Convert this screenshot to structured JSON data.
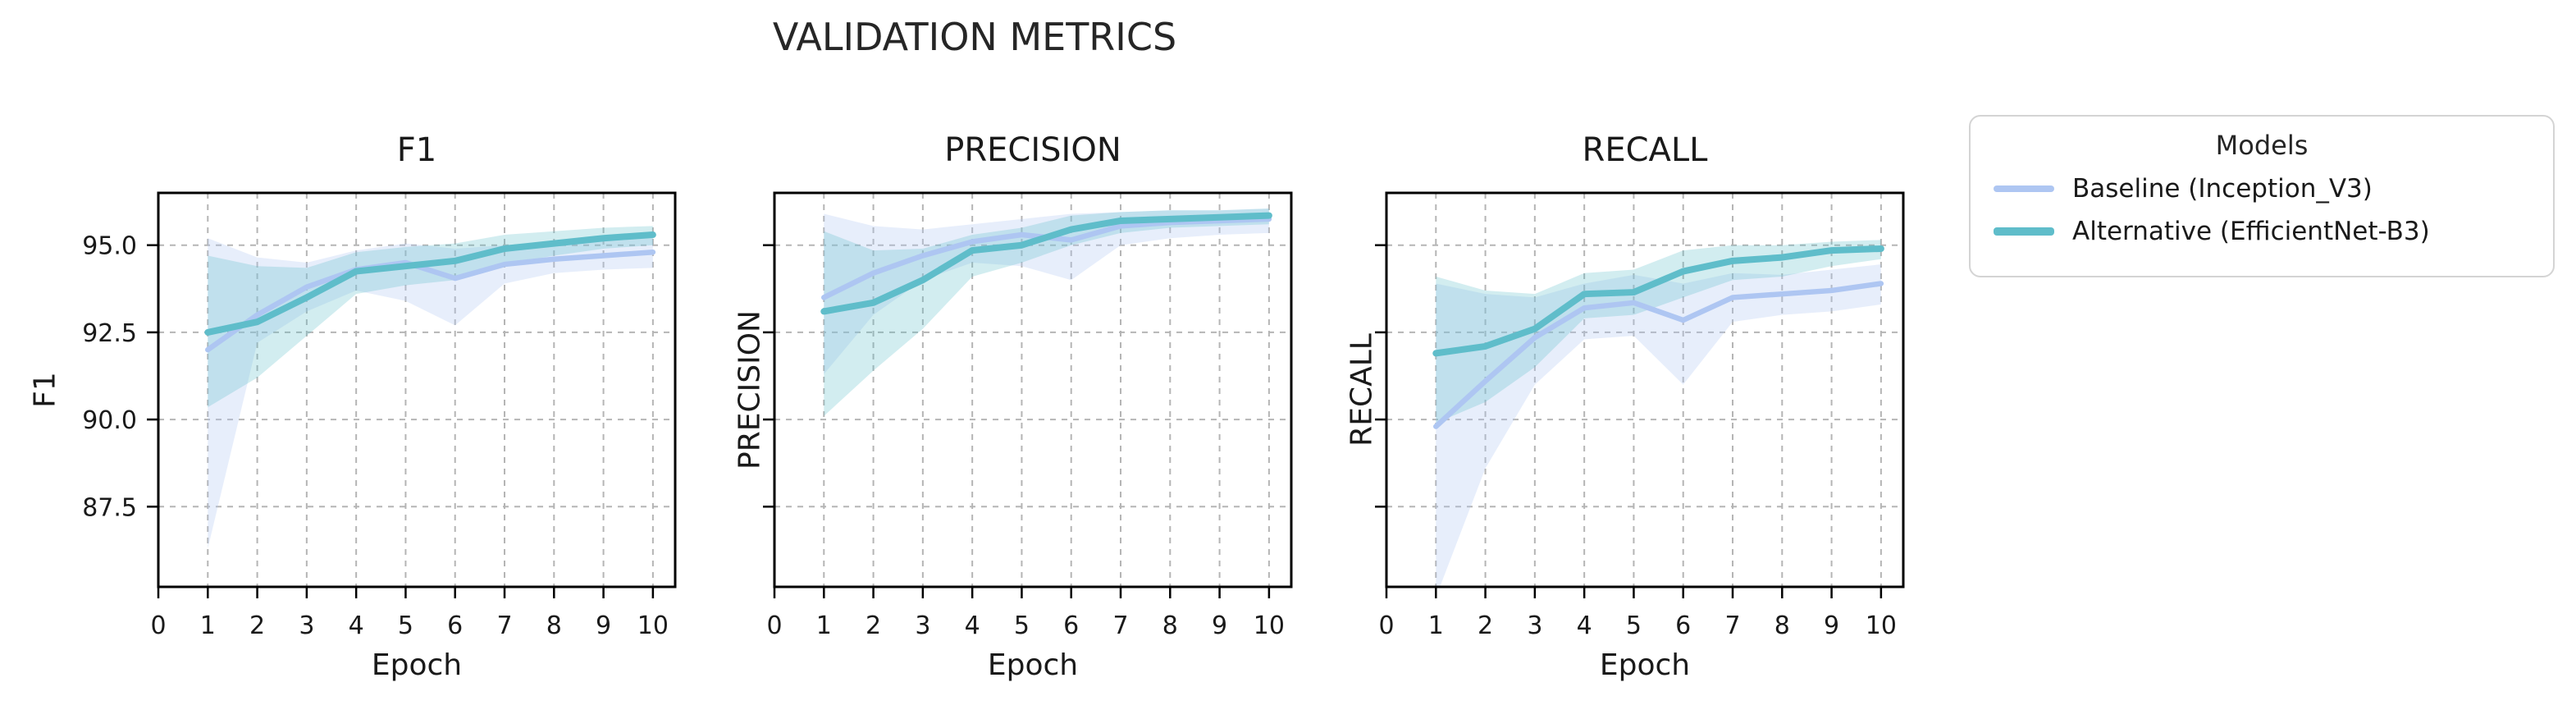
{
  "figure_title": "VALIDATION METRICS",
  "style": {
    "grid_color": "#b5b5b5",
    "spine_color": "#000000",
    "text_color": "#1a1a1a",
    "baseline_color": "#aec6f2",
    "alternative_color": "#5fbdca"
  },
  "legend": {
    "title": "Models",
    "items": [
      {
        "label": "Baseline (Inception_V3)",
        "color": "#aec6f2"
      },
      {
        "label": "Alternative (EfficientNet-B3)",
        "color": "#5fbdca"
      }
    ]
  },
  "chart_data": [
    {
      "type": "line",
      "title": "F1",
      "xlabel": "Epoch",
      "ylabel": "F1",
      "x": [
        1,
        2,
        3,
        4,
        5,
        6,
        7,
        8,
        9,
        10
      ],
      "xticks": [
        0,
        1,
        2,
        3,
        4,
        5,
        6,
        7,
        8,
        9,
        10
      ],
      "xlim": [
        0,
        10.45
      ],
      "ylim": [
        85.2,
        96.5
      ],
      "yticks": [
        87.5,
        90.0,
        92.5,
        95.0
      ],
      "ytick_labels": [
        "87.5",
        "90.0",
        "92.5",
        "95.0"
      ],
      "grid": "dashed",
      "series": [
        {
          "name": "Baseline (Inception_V3)",
          "color": "#aec6f2",
          "band_opacity": 0.3,
          "values": [
            92.0,
            93.0,
            93.8,
            94.3,
            94.5,
            94.05,
            94.45,
            94.6,
            94.7,
            94.8
          ],
          "band_lower": [
            86.3,
            92.2,
            93.1,
            93.7,
            93.4,
            92.7,
            93.9,
            94.2,
            94.3,
            94.35
          ],
          "band_upper": [
            95.2,
            94.65,
            94.5,
            94.85,
            95.05,
            94.9,
            95.0,
            95.1,
            95.15,
            95.2
          ]
        },
        {
          "name": "Alternative (EfficientNet-B3)",
          "color": "#5fbdca",
          "band_opacity": 0.28,
          "values": [
            92.5,
            92.8,
            93.5,
            94.25,
            94.4,
            94.55,
            94.9,
            95.05,
            95.2,
            95.3
          ],
          "band_lower": [
            90.35,
            91.2,
            92.4,
            93.6,
            93.85,
            94.0,
            94.45,
            94.7,
            94.9,
            95.0
          ],
          "band_upper": [
            94.7,
            94.4,
            94.35,
            94.8,
            94.95,
            95.05,
            95.3,
            95.4,
            95.5,
            95.55
          ]
        }
      ]
    },
    {
      "type": "line",
      "title": "PRECISION",
      "xlabel": "Epoch",
      "ylabel": "PRECISION",
      "x": [
        1,
        2,
        3,
        4,
        5,
        6,
        7,
        8,
        9,
        10
      ],
      "xticks": [
        0,
        1,
        2,
        3,
        4,
        5,
        6,
        7,
        8,
        9,
        10
      ],
      "xlim": [
        0,
        10.45
      ],
      "ylim": [
        85.2,
        96.5
      ],
      "yticks": [
        87.5,
        90.0,
        92.5,
        95.0
      ],
      "ytick_labels": [],
      "grid": "dashed",
      "series": [
        {
          "name": "Baseline (Inception_V3)",
          "color": "#aec6f2",
          "band_opacity": 0.3,
          "values": [
            93.5,
            94.2,
            94.7,
            95.1,
            95.3,
            95.15,
            95.55,
            95.65,
            95.7,
            95.75
          ],
          "band_lower": [
            91.3,
            93.0,
            94.0,
            94.5,
            94.4,
            94.0,
            95.0,
            95.2,
            95.3,
            95.35
          ],
          "band_upper": [
            95.9,
            95.55,
            95.45,
            95.6,
            95.75,
            95.9,
            95.95,
            96.0,
            96.0,
            96.05
          ]
        },
        {
          "name": "Alternative (EfficientNet-B3)",
          "color": "#5fbdca",
          "band_opacity": 0.28,
          "values": [
            93.1,
            93.35,
            94.0,
            94.85,
            95.0,
            95.45,
            95.7,
            95.75,
            95.8,
            95.85
          ],
          "band_lower": [
            90.1,
            91.4,
            92.6,
            94.1,
            94.5,
            95.0,
            95.35,
            95.5,
            95.55,
            95.6
          ],
          "band_upper": [
            95.4,
            94.85,
            94.9,
            95.3,
            95.5,
            95.85,
            95.95,
            96.0,
            96.0,
            96.05
          ]
        }
      ]
    },
    {
      "type": "line",
      "title": "RECALL",
      "xlabel": "Epoch",
      "ylabel": "RECALL",
      "x": [
        1,
        2,
        3,
        4,
        5,
        6,
        7,
        8,
        9,
        10
      ],
      "xticks": [
        0,
        1,
        2,
        3,
        4,
        5,
        6,
        7,
        8,
        9,
        10
      ],
      "xlim": [
        0,
        10.45
      ],
      "ylim": [
        85.2,
        96.5
      ],
      "yticks": [
        87.5,
        90.0,
        92.5,
        95.0
      ],
      "ytick_labels": [],
      "grid": "dashed",
      "series": [
        {
          "name": "Baseline (Inception_V3)",
          "color": "#aec6f2",
          "band_opacity": 0.3,
          "values": [
            89.8,
            91.1,
            92.35,
            93.2,
            93.35,
            92.85,
            93.5,
            93.6,
            93.7,
            93.9
          ],
          "band_lower": [
            84.9,
            88.6,
            91.0,
            92.3,
            92.4,
            91.0,
            92.8,
            93.0,
            93.1,
            93.3
          ],
          "band_upper": [
            93.9,
            93.6,
            93.5,
            93.9,
            94.15,
            93.9,
            94.2,
            94.15,
            94.3,
            94.45
          ]
        },
        {
          "name": "Alternative (EfficientNet-B3)",
          "color": "#5fbdca",
          "band_opacity": 0.28,
          "values": [
            91.9,
            92.1,
            92.6,
            93.6,
            93.65,
            94.25,
            94.55,
            94.65,
            94.85,
            94.9
          ],
          "band_lower": [
            89.9,
            90.5,
            91.5,
            92.9,
            93.0,
            93.5,
            94.0,
            94.1,
            94.4,
            94.6
          ],
          "band_upper": [
            94.1,
            93.7,
            93.6,
            94.2,
            94.3,
            94.85,
            95.0,
            95.0,
            95.1,
            95.15
          ]
        }
      ]
    }
  ]
}
